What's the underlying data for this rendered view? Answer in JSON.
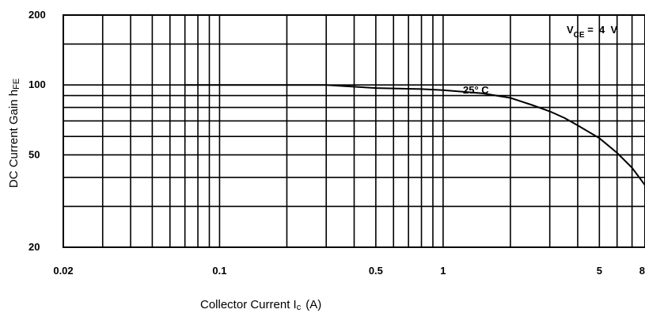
{
  "chart_data": {
    "type": "line",
    "title": "",
    "x_scale": "log",
    "y_scale": "log",
    "xlim": [
      0.02,
      8
    ],
    "ylim": [
      20,
      200
    ],
    "grid": true,
    "x_ticks": [
      {
        "value": 0.02,
        "label": "0.02"
      },
      {
        "value": 0.1,
        "label": "0.1"
      },
      {
        "value": 0.5,
        "label": "0.5"
      },
      {
        "value": 1,
        "label": "1"
      },
      {
        "value": 5,
        "label": "5"
      },
      {
        "value": 8,
        "label": "8"
      }
    ],
    "y_ticks": [
      {
        "value": 20,
        "label": "20"
      },
      {
        "value": 50,
        "label": "50"
      },
      {
        "value": 100,
        "label": "100"
      },
      {
        "value": 200,
        "label": "200"
      }
    ],
    "x_grid": [
      0.02,
      0.03,
      0.04,
      0.05,
      0.06,
      0.07,
      0.08,
      0.09,
      0.1,
      0.2,
      0.3,
      0.4,
      0.5,
      0.6,
      0.7,
      0.8,
      0.9,
      1,
      2,
      3,
      4,
      5,
      6,
      7,
      8
    ],
    "y_grid": [
      20,
      30,
      40,
      50,
      60,
      70,
      80,
      90,
      100,
      150,
      200
    ],
    "xlabel": {
      "main": "Collector Current  I",
      "sub": "c",
      "unit": "(A)"
    },
    "ylabel": {
      "main": "DC Current Gain  h",
      "sub": "FE"
    },
    "annotations": [
      {
        "main": "V",
        "sub": "CE",
        "rest": " =  4  V"
      },
      {
        "main": "25° C"
      }
    ],
    "series": [
      {
        "points": [
          {
            "x": 0.07,
            "y": 100
          },
          {
            "x": 0.3,
            "y": 100
          },
          {
            "x": 0.5,
            "y": 97
          },
          {
            "x": 0.8,
            "y": 96
          },
          {
            "x": 1.0,
            "y": 95
          },
          {
            "x": 1.5,
            "y": 92
          },
          {
            "x": 2.0,
            "y": 88
          },
          {
            "x": 2.5,
            "y": 82
          },
          {
            "x": 3.0,
            "y": 77
          },
          {
            "x": 3.5,
            "y": 72
          },
          {
            "x": 4.0,
            "y": 67
          },
          {
            "x": 5.0,
            "y": 59
          },
          {
            "x": 6.0,
            "y": 51
          },
          {
            "x": 7.0,
            "y": 44
          },
          {
            "x": 8.0,
            "y": 37
          }
        ]
      }
    ]
  }
}
